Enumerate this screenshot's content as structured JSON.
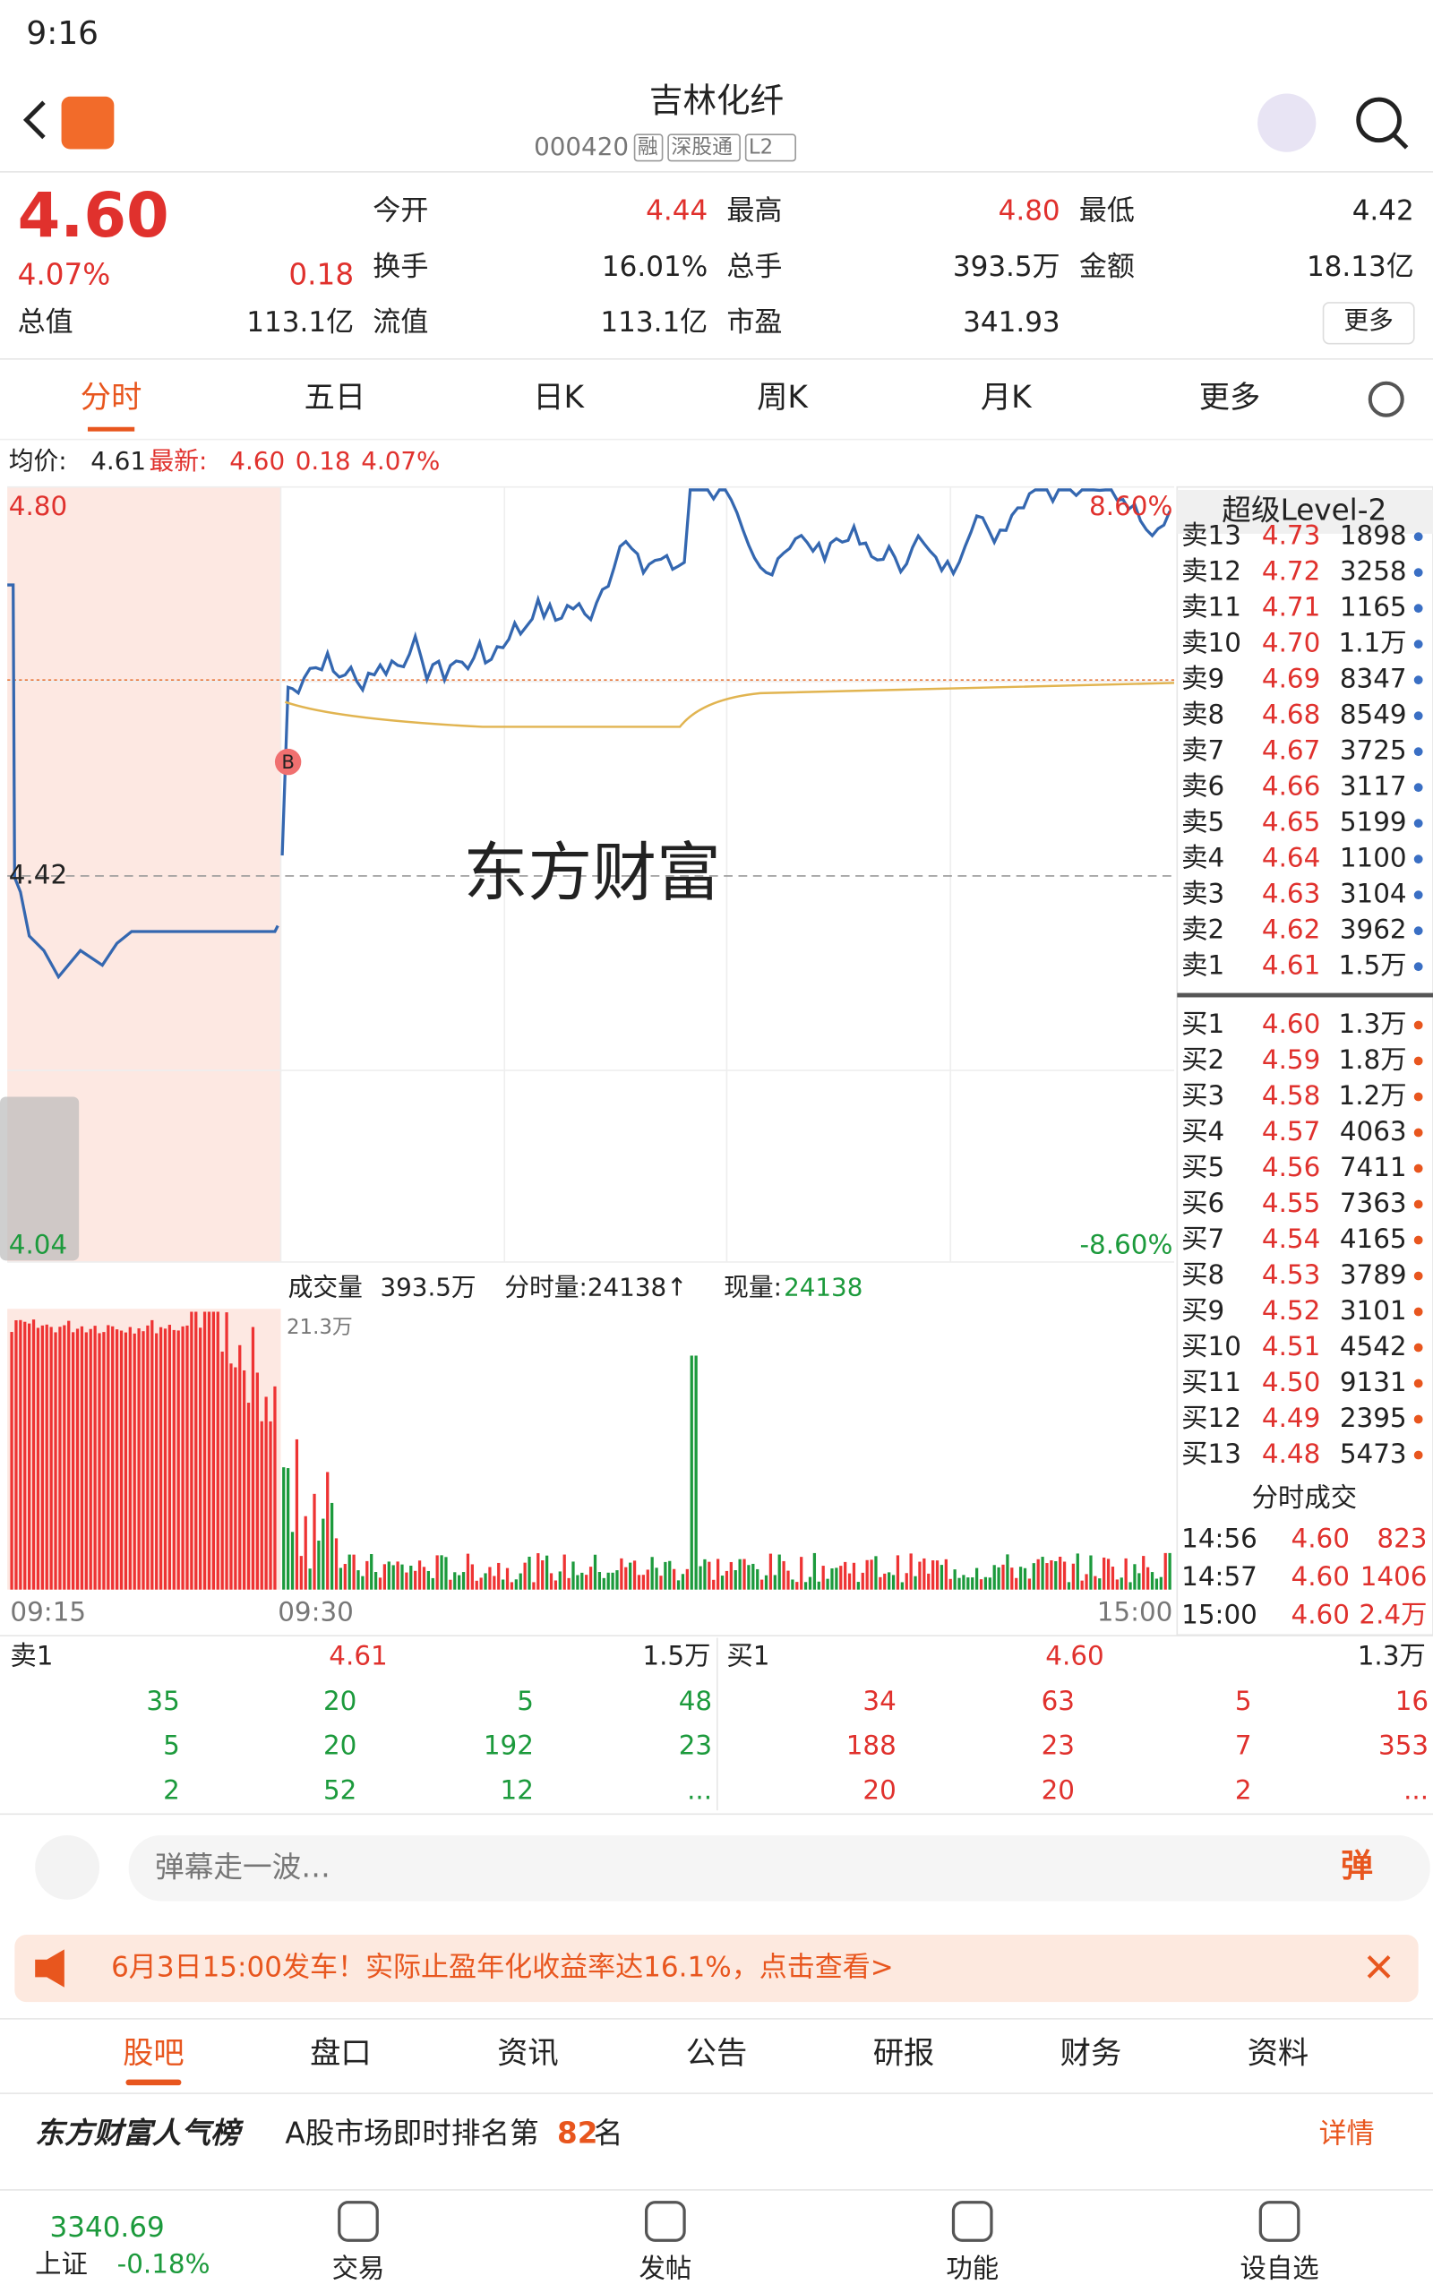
{
  "status_bar": {
    "time": "9:16"
  },
  "header": {
    "title": "吉林化纤",
    "code": "000420",
    "tags": [
      "融",
      "深股通",
      "L2"
    ]
  },
  "quote": {
    "price": "4.60",
    "change_pct": "4.07%",
    "change": "0.18",
    "total_value_label": "总值",
    "total_value": "113.1亿",
    "fields": [
      {
        "label": "今开",
        "value": "4.44"
      },
      {
        "label": "最高",
        "value": "4.80"
      },
      {
        "label": "最低",
        "value": "4.42"
      },
      {
        "label": "换手",
        "value": "16.01%"
      },
      {
        "label": "总手",
        "value": "393.5万"
      },
      {
        "label": "金额",
        "value": "18.13亿"
      },
      {
        "label": "流值",
        "value": "113.1亿"
      },
      {
        "label": "市盈",
        "value": "341.93"
      }
    ],
    "more": "更多"
  },
  "tabs": [
    "分时",
    "五日",
    "日K",
    "周K",
    "月K",
    "更多"
  ],
  "legend": {
    "avg_label": "均价:",
    "avg": "4.61",
    "latest_label": "最新:",
    "latest": "4.60",
    "change": "0.18",
    "pct": "4.07%"
  },
  "chart": {
    "ymax": "4.80",
    "ymid": "4.42",
    "ymin": "4.04",
    "pct_max": "8.60%",
    "pct_min": "-8.60%",
    "marker": "B",
    "watermark": "东方财富"
  },
  "volume": {
    "selector": "成交量",
    "total": "393.5万",
    "period": "分时量:24138↑",
    "current_label": "现量:",
    "current": "24138",
    "max": "21.3万",
    "times": [
      "09:15",
      "09:30",
      "15:00"
    ]
  },
  "level2": {
    "title": "超级Level-2",
    "asks": [
      [
        "卖13",
        "4.73",
        "1898"
      ],
      [
        "卖12",
        "4.72",
        "3258"
      ],
      [
        "卖11",
        "4.71",
        "1165"
      ],
      [
        "卖10",
        "4.70",
        "1.1万"
      ],
      [
        "卖9",
        "4.69",
        "8347"
      ],
      [
        "卖8",
        "4.68",
        "8549"
      ],
      [
        "卖7",
        "4.67",
        "3725"
      ],
      [
        "卖6",
        "4.66",
        "3117"
      ],
      [
        "卖5",
        "4.65",
        "5199"
      ],
      [
        "卖4",
        "4.64",
        "1100"
      ],
      [
        "卖3",
        "4.63",
        "3104"
      ],
      [
        "卖2",
        "4.62",
        "3962"
      ],
      [
        "卖1",
        "4.61",
        "1.5万"
      ]
    ],
    "bids": [
      [
        "买1",
        "4.60",
        "1.3万"
      ],
      [
        "买2",
        "4.59",
        "1.8万"
      ],
      [
        "买3",
        "4.58",
        "1.2万"
      ],
      [
        "买4",
        "4.57",
        "4063"
      ],
      [
        "买5",
        "4.56",
        "7411"
      ],
      [
        "买6",
        "4.55",
        "7363"
      ],
      [
        "买7",
        "4.54",
        "4165"
      ],
      [
        "买8",
        "4.53",
        "3789"
      ],
      [
        "买9",
        "4.52",
        "3101"
      ],
      [
        "买10",
        "4.51",
        "4542"
      ],
      [
        "买11",
        "4.50",
        "9131"
      ],
      [
        "买12",
        "4.49",
        "2395"
      ],
      [
        "买13",
        "4.48",
        "5473"
      ]
    ]
  },
  "trades": {
    "title": "分时成交",
    "rows": [
      [
        "14:56",
        "4.60",
        "823"
      ],
      [
        "14:57",
        "4.60",
        "1406"
      ],
      [
        "15:00",
        "4.60",
        "2.4万"
      ]
    ]
  },
  "queue": {
    "sell": {
      "label": "卖1",
      "price": "4.61",
      "volume": "1.5万",
      "items": [
        "35",
        "20",
        "5",
        "48",
        "5",
        "20",
        "192",
        "23",
        "2",
        "52",
        "12",
        "..."
      ]
    },
    "buy": {
      "label": "买1",
      "price": "4.60",
      "volume": "1.3万",
      "items": [
        "34",
        "63",
        "5",
        "16",
        "188",
        "23",
        "7",
        "353",
        "20",
        "20",
        "2",
        "..."
      ]
    }
  },
  "comment": {
    "placeholder": "弹幕走一波…",
    "button": "弹"
  },
  "banner": "6月3日15:00发车！实际止盈年化收益率达16.1%，点击查看>",
  "subtabs": [
    "股吧",
    "盘口",
    "资讯",
    "公告",
    "研报",
    "财务",
    "资料"
  ],
  "rank": {
    "brand": "东方财富人气榜",
    "text": "A股市场即时排名第",
    "rank": "82",
    "suffix": "名",
    "link": "详情"
  },
  "bottom": {
    "index_value": "3340.69",
    "index_name": "上证",
    "index_change": "-0.18%",
    "nav": [
      "交易",
      "发帖",
      "功能",
      "设自选"
    ]
  }
}
